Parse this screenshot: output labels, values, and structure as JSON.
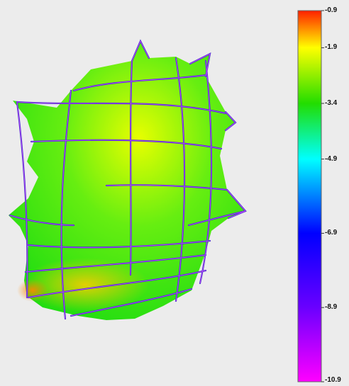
{
  "colorbar": {
    "stops": [
      {
        "value": -0.9,
        "color": "#ff2000"
      },
      {
        "value": -1.9,
        "color": "#ffff00"
      },
      {
        "value": -3.4,
        "color": "#22dd00"
      },
      {
        "value": -4.9,
        "color": "#00ffff"
      },
      {
        "value": -6.9,
        "color": "#0000ff"
      },
      {
        "value": -8.9,
        "color": "#6a00ff"
      },
      {
        "value": -10.9,
        "color": "#ff00ff"
      }
    ],
    "ticks": [
      {
        "label": "-0.9",
        "value": -0.9
      },
      {
        "label": "-1.9",
        "value": -1.9
      },
      {
        "label": "-3.4",
        "value": -3.4
      },
      {
        "label": "-4.9",
        "value": -4.9
      },
      {
        "label": "-6.9",
        "value": -6.9
      },
      {
        "label": "-8.9",
        "value": -8.9
      },
      {
        "label": "-10.9",
        "value": -10.9
      }
    ]
  },
  "surface": {
    "base_color": "#33dd22",
    "highlight_color": "#f4ff00",
    "warm_color": "#ffcc00",
    "edge_color": "#ff8800",
    "grid_line_color": "#4433cc",
    "grid_highlight_color": "#cc44ff"
  }
}
